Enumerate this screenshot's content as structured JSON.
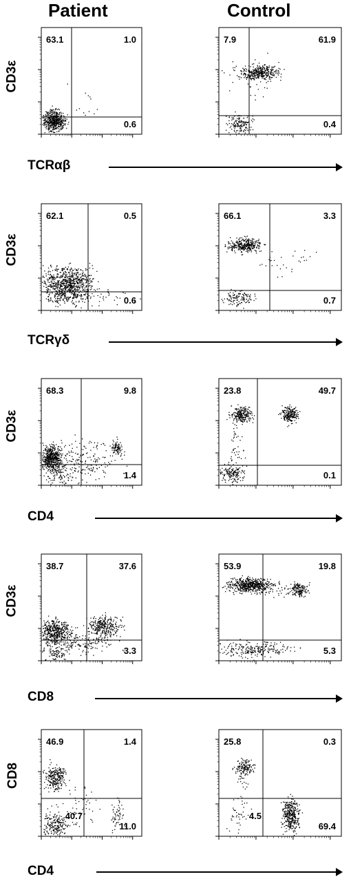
{
  "headers": {
    "patient": "Patient",
    "control": "Control"
  },
  "chart_data": [
    {
      "type": "scatter",
      "group": "Patient",
      "xlabel": "TCRαβ",
      "ylabel": "CD3ε",
      "quadrants": {
        "top_left": "63.1",
        "top_right": "1.0",
        "bottom_right": "0.6"
      }
    },
    {
      "type": "scatter",
      "group": "Control",
      "xlabel": "TCRαβ",
      "ylabel": "CD3ε",
      "quadrants": {
        "top_left": "7.9",
        "top_right": "61.9",
        "bottom_right": "0.4"
      }
    },
    {
      "type": "scatter",
      "group": "Patient",
      "xlabel": "TCRγδ",
      "ylabel": "CD3ε",
      "quadrants": {
        "top_left": "62.1",
        "top_right": "0.5",
        "bottom_right": "0.6"
      }
    },
    {
      "type": "scatter",
      "group": "Control",
      "xlabel": "TCRγδ",
      "ylabel": "CD3ε",
      "quadrants": {
        "top_left": "66.1",
        "top_right": "3.3",
        "bottom_right": "0.7"
      }
    },
    {
      "type": "scatter",
      "group": "Patient",
      "xlabel": "CD4",
      "ylabel": "CD3ε",
      "quadrants": {
        "top_left": "68.3",
        "top_right": "9.8",
        "bottom_right": "1.4"
      }
    },
    {
      "type": "scatter",
      "group": "Control",
      "xlabel": "CD4",
      "ylabel": "CD3ε",
      "quadrants": {
        "top_left": "23.8",
        "top_right": "49.7",
        "bottom_right": "0.1"
      }
    },
    {
      "type": "scatter",
      "group": "Patient",
      "xlabel": "CD8",
      "ylabel": "CD3ε",
      "quadrants": {
        "top_left": "38.7",
        "top_right": "37.6",
        "bottom_right": "3.3"
      }
    },
    {
      "type": "scatter",
      "group": "Control",
      "xlabel": "CD8",
      "ylabel": "CD3ε",
      "quadrants": {
        "top_left": "53.9",
        "top_right": "19.8",
        "bottom_right": "5.3"
      }
    },
    {
      "type": "scatter",
      "group": "Patient",
      "xlabel": "CD4",
      "ylabel": "CD8",
      "quadrants": {
        "top_left": "46.9",
        "top_right": "1.4",
        "bottom_left": "40.7",
        "bottom_right": "11.0"
      }
    },
    {
      "type": "scatter",
      "group": "Control",
      "xlabel": "CD4",
      "ylabel": "CD8",
      "quadrants": {
        "top_left": "25.8",
        "top_right": "0.3",
        "bottom_left": "4.5",
        "bottom_right": "69.4"
      }
    }
  ],
  "rows": [
    {
      "ylabel": "CD3ε",
      "xlabel": "TCRαβ"
    },
    {
      "ylabel": "CD3ε",
      "xlabel": "TCRγδ"
    },
    {
      "ylabel": "CD3ε",
      "xlabel": "CD4"
    },
    {
      "ylabel": "CD3ε",
      "xlabel": "CD8"
    },
    {
      "ylabel": "CD8",
      "xlabel": "CD4"
    }
  ]
}
